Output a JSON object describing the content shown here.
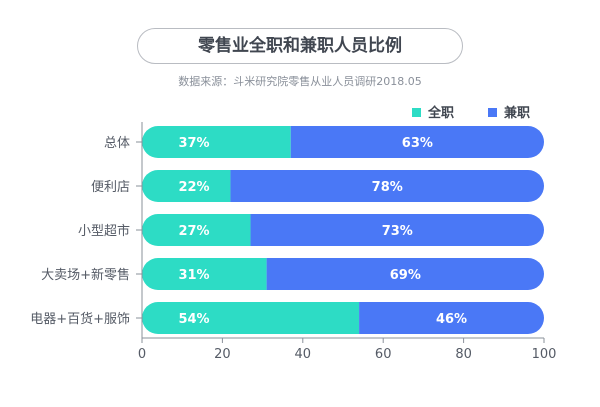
{
  "chart_data": {
    "type": "bar",
    "stacked": true,
    "orientation": "horizontal",
    "title": "零售业全职和兼职人员比例",
    "subtitle": "数据来源：斗米研究院零售从业人员调研2018.05",
    "categories": [
      "总体",
      "便利店",
      "小型超市",
      "大卖场+新零售",
      "电器+百货+服饰"
    ],
    "series": [
      {
        "name": "全职",
        "color": "#2ddcc5",
        "values": [
          37,
          22,
          27,
          31,
          54
        ],
        "labels": [
          "37%",
          "22%",
          "27%",
          "31%",
          "54%"
        ]
      },
      {
        "name": "兼职",
        "color": "#4a78f6",
        "values": [
          63,
          78,
          73,
          69,
          46
        ],
        "labels": [
          "63%",
          "78%",
          "73%",
          "69%",
          "46%"
        ]
      }
    ],
    "xlim": [
      0,
      100
    ],
    "xticks": [
      "0",
      "20",
      "40",
      "60",
      "80",
      "100"
    ],
    "legend": "top-right",
    "grid": false
  }
}
